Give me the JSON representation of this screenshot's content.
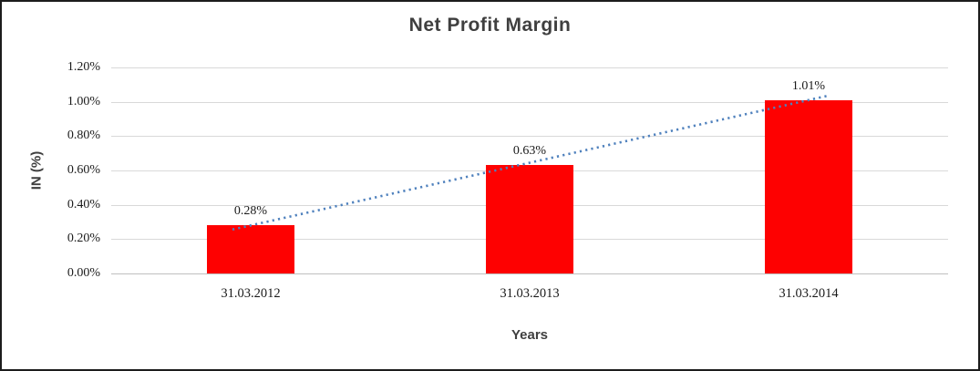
{
  "chart_data": {
    "type": "bar",
    "title": "Net Profit Margin",
    "xlabel": "Years",
    "ylabel": "IN (%)",
    "categories": [
      "31.03.2012",
      "31.03.2013",
      "31.03.2014"
    ],
    "values": [
      0.28,
      0.63,
      1.01
    ],
    "data_labels": [
      "0.28%",
      "0.63%",
      "1.01%"
    ],
    "ylim": [
      0,
      1.2
    ],
    "ytick_step": 0.2,
    "ytick_labels": [
      "0.00%",
      "0.20%",
      "0.40%",
      "0.60%",
      "0.80%",
      "1.00%",
      "1.20%"
    ],
    "grid": true,
    "legend": "none",
    "bar_color": "#FE0101",
    "trendline": {
      "type": "linear",
      "style": "dotted",
      "color": "#4F81BD"
    }
  }
}
